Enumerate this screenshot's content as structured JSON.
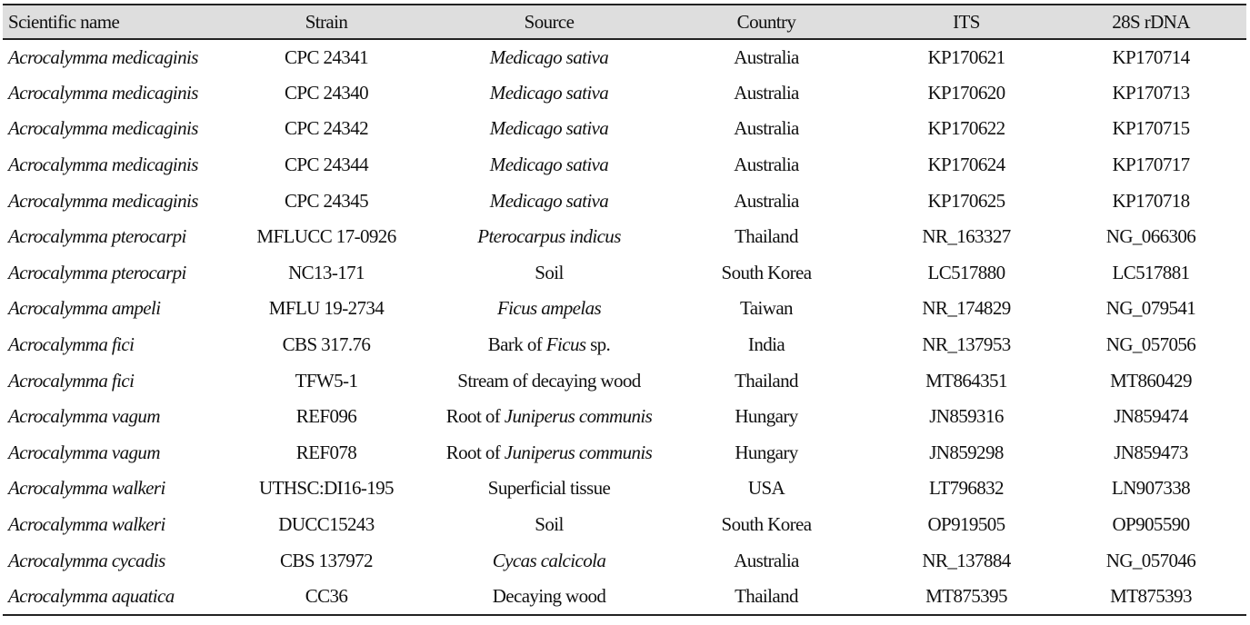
{
  "table": {
    "headers": [
      "Scientific name",
      "Strain",
      "Source",
      "Country",
      "ITS",
      "28S rDNA"
    ],
    "rows": [
      {
        "name": "Acrocalymma medicaginis",
        "strain": "CPC 24341",
        "source": [
          {
            "t": "Medicago sativa",
            "i": true
          }
        ],
        "country": "Australia",
        "its": "KP170621",
        "lsu": "KP170714"
      },
      {
        "name": "Acrocalymma medicaginis",
        "strain": "CPC 24340",
        "source": [
          {
            "t": "Medicago sativa",
            "i": true
          }
        ],
        "country": "Australia",
        "its": "KP170620",
        "lsu": "KP170713"
      },
      {
        "name": "Acrocalymma medicaginis",
        "strain": "CPC 24342",
        "source": [
          {
            "t": "Medicago sativa",
            "i": true
          }
        ],
        "country": "Australia",
        "its": "KP170622",
        "lsu": "KP170715"
      },
      {
        "name": "Acrocalymma medicaginis",
        "strain": "CPC 24344",
        "source": [
          {
            "t": "Medicago sativa",
            "i": true
          }
        ],
        "country": "Australia",
        "its": "KP170624",
        "lsu": "KP170717"
      },
      {
        "name": "Acrocalymma medicaginis",
        "strain": "CPC 24345",
        "source": [
          {
            "t": "Medicago sativa",
            "i": true
          }
        ],
        "country": "Australia",
        "its": "KP170625",
        "lsu": "KP170718"
      },
      {
        "name": "Acrocalymma pterocarpi",
        "strain": "MFLUCC 17-0926",
        "source": [
          {
            "t": "Pterocarpus indicus",
            "i": true
          }
        ],
        "country": "Thailand",
        "its": "NR_163327",
        "lsu": "NG_066306"
      },
      {
        "name": "Acrocalymma pterocarpi",
        "strain": "NC13-171",
        "source": [
          {
            "t": "Soil",
            "i": false
          }
        ],
        "country": "South Korea",
        "its": "LC517880",
        "lsu": "LC517881"
      },
      {
        "name": "Acrocalymma ampeli",
        "strain": "MFLU 19-2734",
        "source": [
          {
            "t": "Ficus ampelas",
            "i": true
          }
        ],
        "country": "Taiwan",
        "its": "NR_174829",
        "lsu": "NG_079541"
      },
      {
        "name": "Acrocalymma fici",
        "strain": "CBS 317.76",
        "source": [
          {
            "t": "Bark of ",
            "i": false
          },
          {
            "t": "Ficus",
            "i": true
          },
          {
            "t": " sp.",
            "i": false
          }
        ],
        "country": "India",
        "its": "NR_137953",
        "lsu": "NG_057056"
      },
      {
        "name": "Acrocalymma fici",
        "strain": "TFW5-1",
        "source": [
          {
            "t": "Stream of decaying wood",
            "i": false
          }
        ],
        "country": "Thailand",
        "its": "MT864351",
        "lsu": "MT860429"
      },
      {
        "name": "Acrocalymma vagum",
        "strain": "REF096",
        "source": [
          {
            "t": "Root of ",
            "i": false
          },
          {
            "t": "Juniperus communis",
            "i": true
          }
        ],
        "country": "Hungary",
        "its": "JN859316",
        "lsu": "JN859474"
      },
      {
        "name": "Acrocalymma vagum",
        "strain": "REF078",
        "source": [
          {
            "t": "Root of ",
            "i": false
          },
          {
            "t": "Juniperus communis",
            "i": true
          }
        ],
        "country": "Hungary",
        "its": "JN859298",
        "lsu": "JN859473"
      },
      {
        "name": "Acrocalymma walkeri",
        "strain": "UTHSC:DI16-195",
        "source": [
          {
            "t": "Superficial tissue",
            "i": false
          }
        ],
        "country": "USA",
        "its": "LT796832",
        "lsu": "LN907338"
      },
      {
        "name": "Acrocalymma walkeri",
        "strain": "DUCC15243",
        "source": [
          {
            "t": "Soil",
            "i": false
          }
        ],
        "country": "South Korea",
        "its": "OP919505",
        "lsu": "OP905590"
      },
      {
        "name": "Acrocalymma cycadis",
        "strain": "CBS 137972",
        "source": [
          {
            "t": "Cycas calcicola",
            "i": true
          }
        ],
        "country": "Australia",
        "its": "NR_137884",
        "lsu": "NG_057046"
      },
      {
        "name": "Acrocalymma aquatica",
        "strain": "CC36",
        "source": [
          {
            "t": "Decaying wood",
            "i": false
          }
        ],
        "country": "Thailand",
        "its": "MT875395",
        "lsu": "MT875393"
      }
    ]
  }
}
